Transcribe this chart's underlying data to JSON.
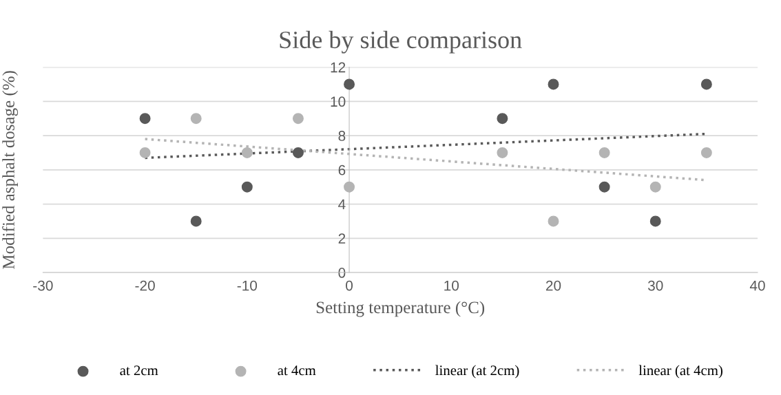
{
  "chart_data": {
    "type": "scatter",
    "title": "Side by side comparison",
    "xlabel": "Setting temperature (°C)",
    "ylabel": "Modified asphalt dosage (%)",
    "xlim": [
      -30,
      40
    ],
    "xticks": [
      -30,
      -20,
      -10,
      0,
      10,
      20,
      30,
      40
    ],
    "ylim": [
      0,
      12
    ],
    "yticks": [
      0,
      2,
      4,
      6,
      8,
      10,
      12
    ],
    "grid": "y",
    "legend": "bottom",
    "marker": "circle",
    "series": [
      {
        "name": "at 2cm",
        "color": "#595959",
        "x": [
          -20,
          -15,
          -10,
          -5,
          0,
          15,
          20,
          25,
          30,
          35
        ],
        "values": [
          9,
          3,
          5,
          7,
          11,
          9,
          11,
          5,
          3,
          11
        ]
      },
      {
        "name": "at 4cm",
        "color": "#b4b4b4",
        "x": [
          -20,
          -15,
          -10,
          -5,
          0,
          15,
          20,
          25,
          30,
          35
        ],
        "values": [
          7,
          9,
          7,
          9,
          5,
          7,
          3,
          7,
          5,
          7
        ]
      },
      {
        "name": "linear (at 2cm)",
        "type": "line",
        "line_style": "dotted",
        "marker": "none",
        "color": "#595959",
        "x": [
          -20,
          35
        ],
        "values": [
          6.7,
          8.1
        ]
      },
      {
        "name": "linear (at 4cm)",
        "type": "line",
        "line_style": "dotted",
        "marker": "none",
        "color": "#b4b4b4",
        "x": [
          -20,
          35
        ],
        "values": [
          7.8,
          5.4
        ]
      }
    ]
  }
}
